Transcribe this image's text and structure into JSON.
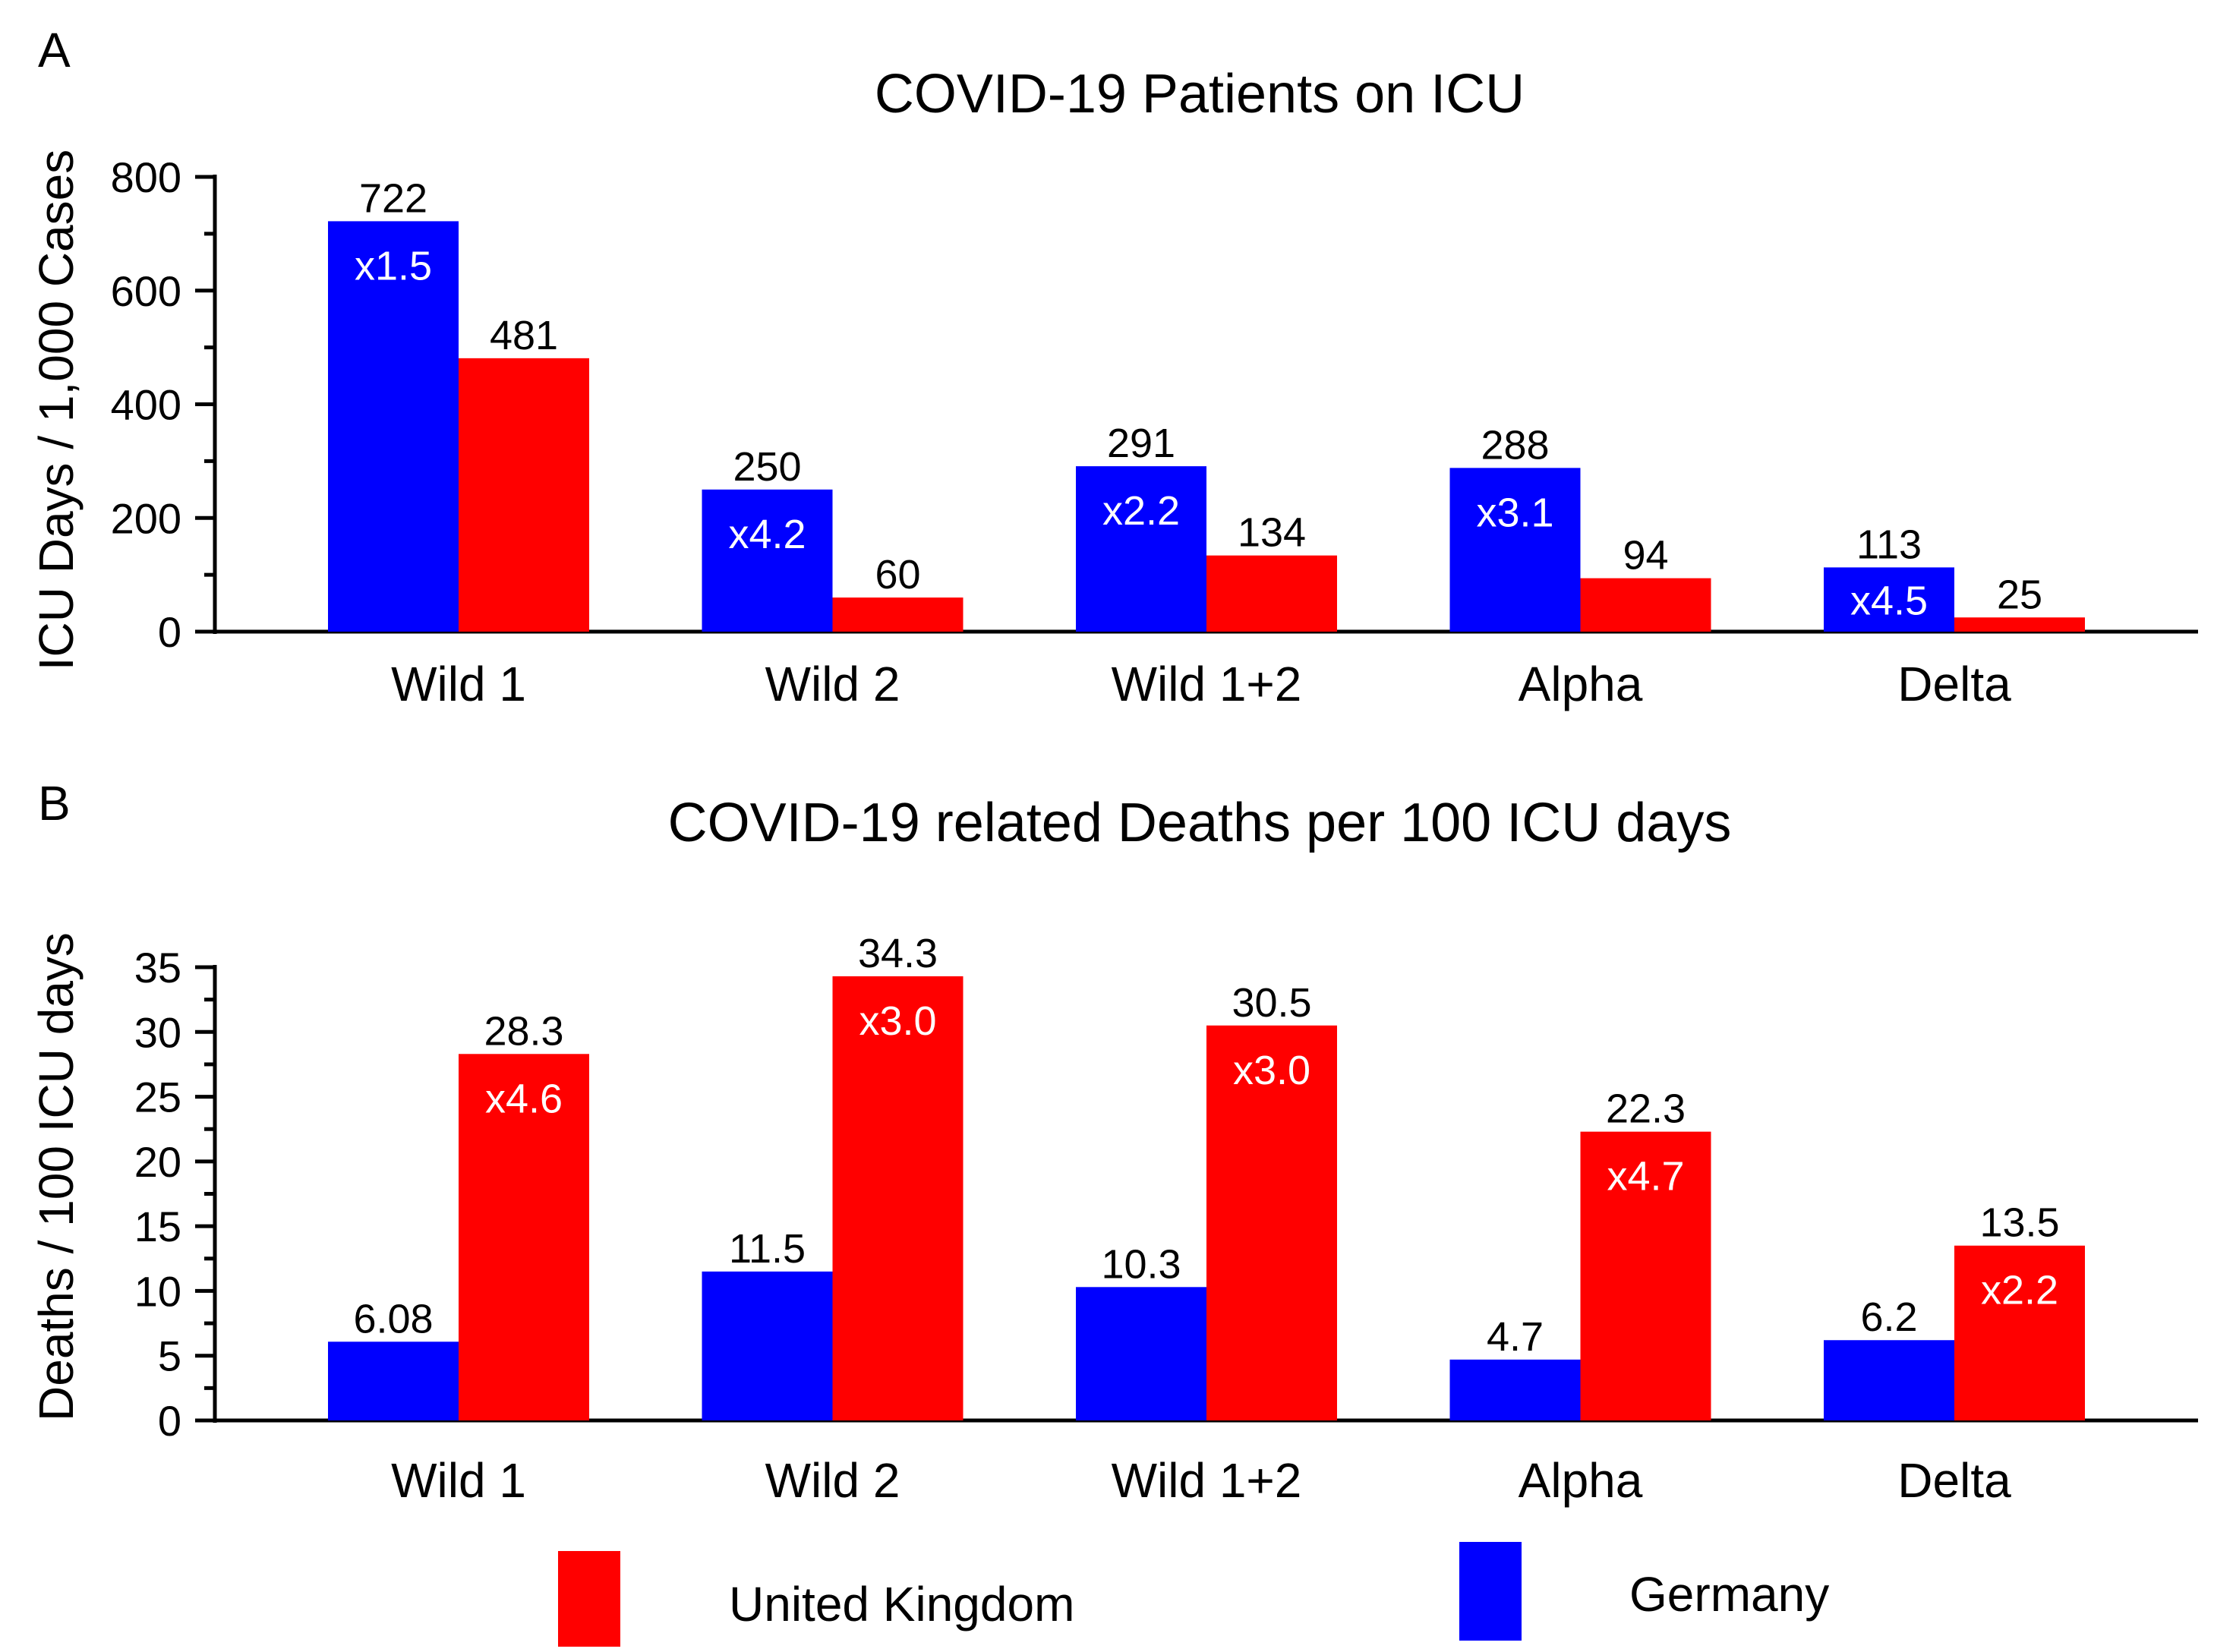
{
  "figure": {
    "legend": [
      {
        "label": "United Kingdom",
        "color": "#ff0000"
      },
      {
        "label": "Germany",
        "color": "#0000ff"
      }
    ]
  },
  "chart_data": [
    {
      "type": "bar",
      "panel_label": "A",
      "title": "COVID-19 Patients on ICU",
      "xlabel": "",
      "ylabel": "ICU Days / 1,000 Cases",
      "ylim": [
        0,
        800
      ],
      "yticks": [
        0,
        200,
        400,
        600,
        800
      ],
      "categories": [
        "Wild 1",
        "Wild 2",
        "Wild 1+2",
        "Alpha",
        "Delta"
      ],
      "series": [
        {
          "name": "Germany",
          "color": "#0000ff",
          "values": [
            722,
            250,
            291,
            288,
            113
          ],
          "labels": [
            "722",
            "250",
            "291",
            "288",
            "113"
          ]
        },
        {
          "name": "United Kingdom",
          "color": "#ff0000",
          "values": [
            481,
            60,
            134,
            94,
            25
          ],
          "labels": [
            "481",
            "60",
            "134",
            "94",
            "25"
          ]
        }
      ],
      "ratio_labels": [
        "x1.5",
        "x4.2",
        "x2.2",
        "x3.1",
        "x4.5"
      ],
      "ratio_series": "Germany"
    },
    {
      "type": "bar",
      "panel_label": "B",
      "title": "COVID-19 related Deaths per 100 ICU days",
      "xlabel": "",
      "ylabel": "Deaths / 100 ICU days",
      "ylim": [
        0,
        35
      ],
      "yticks": [
        0,
        5,
        10,
        15,
        20,
        25,
        30,
        35
      ],
      "categories": [
        "Wild 1",
        "Wild 2",
        "Wild 1+2",
        "Alpha",
        "Delta"
      ],
      "series": [
        {
          "name": "Germany",
          "color": "#0000ff",
          "values": [
            6.08,
            11.5,
            10.3,
            4.7,
            6.2
          ],
          "labels": [
            "6.08",
            "11.5",
            "10.3",
            "4.7",
            "6.2"
          ]
        },
        {
          "name": "United Kingdom",
          "color": "#ff0000",
          "values": [
            28.3,
            34.3,
            30.5,
            22.3,
            13.5
          ],
          "labels": [
            "28.3",
            "34.3",
            "30.5",
            "22.3",
            "13.5"
          ]
        }
      ],
      "ratio_labels": [
        "x4.6",
        "x3.0",
        "x3.0",
        "x4.7",
        "x2.2"
      ],
      "ratio_series": "United Kingdom"
    }
  ]
}
